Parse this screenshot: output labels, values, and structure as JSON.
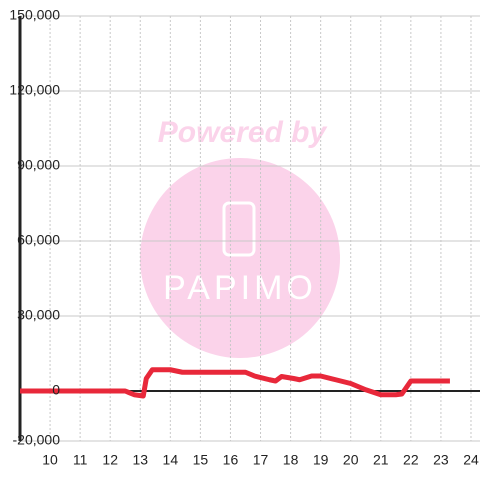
{
  "chart_data": {
    "type": "line",
    "x": [
      9,
      12.5,
      12.8,
      13.1,
      13.2,
      13.4,
      14,
      14.4,
      16.5,
      16.8,
      17.3,
      17.5,
      17.7,
      18.1,
      18.3,
      18.7,
      19,
      19.5,
      20,
      20.5,
      21,
      21.5,
      21.7,
      22,
      23.3
    ],
    "series": [
      {
        "name": "value",
        "color": "#e8283a",
        "values": [
          0,
          0,
          -1500,
          -2000,
          5000,
          8500,
          8500,
          7500,
          7500,
          6000,
          4500,
          4000,
          5800,
          5000,
          4500,
          6000,
          6000,
          4500,
          3000,
          500,
          -1500,
          -1500,
          -1200,
          4000,
          4000
        ]
      }
    ],
    "xlim": [
      9,
      24.3
    ],
    "xticks": [
      10,
      11,
      12,
      13,
      14,
      15,
      16,
      17,
      18,
      19,
      20,
      21,
      22,
      23,
      24
    ],
    "ylim": [
      -20000,
      150000
    ],
    "yticks": [
      {
        "value": -20000,
        "label": "-20,000"
      },
      0,
      {
        "value": 30000,
        "label": "30,000"
      },
      {
        "value": 60000,
        "label": "60,000"
      },
      {
        "value": 90000,
        "label": "90,000"
      },
      {
        "value": 120000,
        "label": "120,000"
      },
      {
        "value": 150000,
        "label": "150,000"
      }
    ],
    "grid": true
  },
  "watermark": {
    "text": "Powered by",
    "logo": "PAPIMO"
  }
}
